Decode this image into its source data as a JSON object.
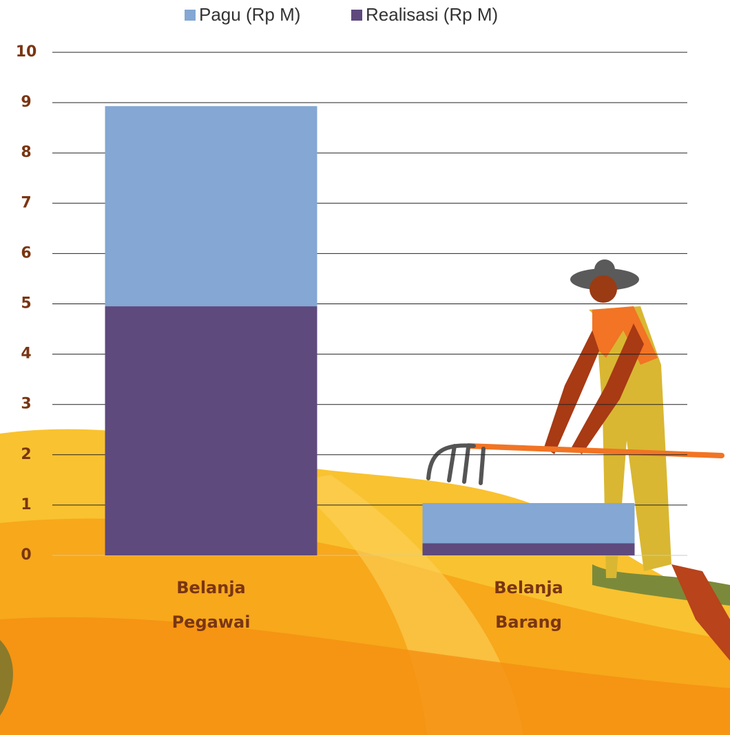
{
  "chart_data": {
    "type": "bar",
    "categories": [
      "Belanja Pegawai",
      "Belanja Barang"
    ],
    "series": [
      {
        "name": "Pagu (Rp M)",
        "color": "#84a7d3",
        "values": [
          8.93,
          1.04
        ]
      },
      {
        "name": "Realisasi (Rp M)",
        "color": "#5e4a7d",
        "values": [
          4.95,
          0.24
        ]
      }
    ],
    "ylim": [
      0,
      10
    ],
    "yticks": [
      0,
      1,
      2,
      3,
      4,
      5,
      6,
      7,
      8,
      9,
      10
    ],
    "grid": true,
    "legend": "top"
  }
}
